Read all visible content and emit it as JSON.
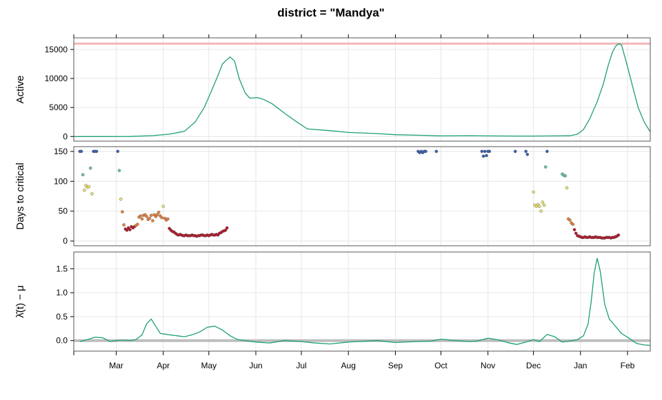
{
  "title": "district = \"Mandya\"",
  "colors": {
    "line": "#1b9e77",
    "reference_band": "#f4b6b6",
    "zero_line": "#bdbdbd",
    "grid": "#e6e6e6",
    "frame": "#555555",
    "low_days": "#b2182b",
    "mid_days": "#e08040",
    "high_mid_days": "#e8e070",
    "high_days": "#66c2a5",
    "max_days": "#3a5fae"
  },
  "chart_data": [
    {
      "type": "line",
      "ylabel": "Active",
      "ylim": [
        -800,
        17000
      ],
      "yticks": [
        0,
        5000,
        10000,
        15000
      ],
      "reference_line": 16000,
      "x_dates": [
        "2021-02-01",
        "2021-02-20",
        "2021-03-10",
        "2021-03-25",
        "2021-04-05",
        "2021-04-15",
        "2021-04-22",
        "2021-04-28",
        "2021-05-03",
        "2021-05-07",
        "2021-05-10",
        "2021-05-12",
        "2021-05-15",
        "2021-05-18",
        "2021-05-21",
        "2021-05-25",
        "2021-05-28",
        "2021-06-02",
        "2021-06-06",
        "2021-06-12",
        "2021-06-20",
        "2021-06-28",
        "2021-07-05",
        "2021-07-20",
        "2021-08-01",
        "2021-08-20",
        "2021-09-01",
        "2021-09-20",
        "2021-10-01",
        "2021-10-20",
        "2021-11-01",
        "2021-11-20",
        "2021-12-01",
        "2021-12-15",
        "2021-12-25",
        "2021-12-30",
        "2022-01-03",
        "2022-01-07",
        "2022-01-12",
        "2022-01-16",
        "2022-01-19",
        "2022-01-22",
        "2022-01-24",
        "2022-01-26",
        "2022-01-28",
        "2022-01-31",
        "2022-02-04",
        "2022-02-08",
        "2022-02-12",
        "2022-02-16"
      ],
      "values": [
        0,
        0,
        10,
        150,
        400,
        900,
        2500,
        5000,
        8000,
        10500,
        12500,
        13000,
        13700,
        13000,
        10000,
        7500,
        6600,
        6700,
        6400,
        5600,
        4000,
        2500,
        1300,
        1000,
        700,
        500,
        300,
        200,
        100,
        150,
        100,
        80,
        80,
        100,
        120,
        400,
        1200,
        3000,
        6000,
        9000,
        12000,
        14500,
        15500,
        16000,
        15800,
        13000,
        9000,
        5000,
        2500,
        800
      ]
    },
    {
      "type": "scatter",
      "ylabel": "Days to critical",
      "ylim": [
        -8,
        158
      ],
      "yticks": [
        0,
        50,
        100,
        150
      ],
      "color_scale": "days-to-critical",
      "x_dates": [
        "2021-02-05",
        "2021-02-06",
        "2021-02-07",
        "2021-02-08",
        "2021-02-09",
        "2021-02-10",
        "2021-02-11",
        "2021-02-12",
        "2021-02-13",
        "2021-02-14",
        "2021-02-15",
        "2021-02-16",
        "2021-03-02",
        "2021-03-03",
        "2021-03-04",
        "2021-03-05",
        "2021-03-06",
        "2021-03-07",
        "2021-03-08",
        "2021-03-09",
        "2021-03-10",
        "2021-03-11",
        "2021-03-12",
        "2021-03-13",
        "2021-03-14",
        "2021-03-15",
        "2021-03-16",
        "2021-03-17",
        "2021-03-18",
        "2021-03-19",
        "2021-03-20",
        "2021-03-21",
        "2021-03-22",
        "2021-03-23",
        "2021-03-24",
        "2021-03-25",
        "2021-03-26",
        "2021-03-27",
        "2021-03-28",
        "2021-03-29",
        "2021-03-30",
        "2021-03-31",
        "2021-04-01",
        "2021-04-02",
        "2021-04-03",
        "2021-04-04",
        "2021-04-05",
        "2021-04-06",
        "2021-04-07",
        "2021-04-08",
        "2021-04-09",
        "2021-04-10",
        "2021-04-11",
        "2021-04-12",
        "2021-04-13",
        "2021-04-14",
        "2021-04-15",
        "2021-04-16",
        "2021-04-17",
        "2021-04-18",
        "2021-04-19",
        "2021-04-20",
        "2021-04-21",
        "2021-04-22",
        "2021-04-23",
        "2021-04-24",
        "2021-04-25",
        "2021-04-26",
        "2021-04-27",
        "2021-04-28",
        "2021-04-29",
        "2021-04-30",
        "2021-05-01",
        "2021-05-02",
        "2021-05-03",
        "2021-05-04",
        "2021-05-05",
        "2021-05-06",
        "2021-05-07",
        "2021-05-08",
        "2021-05-09",
        "2021-05-10",
        "2021-05-11",
        "2021-05-12",
        "2021-05-13",
        "2021-09-16",
        "2021-09-17",
        "2021-09-18",
        "2021-09-19",
        "2021-09-20",
        "2021-09-21",
        "2021-09-28",
        "2021-10-28",
        "2021-10-29",
        "2021-10-30",
        "2021-10-31",
        "2021-11-01",
        "2021-11-02",
        "2021-11-19",
        "2021-11-26",
        "2021-11-27",
        "2021-12-01",
        "2021-12-02",
        "2021-12-03",
        "2021-12-04",
        "2021-12-05",
        "2021-12-06",
        "2021-12-07",
        "2021-12-08",
        "2021-12-09",
        "2021-12-10",
        "2021-12-20",
        "2021-12-21",
        "2021-12-22",
        "2021-12-23",
        "2021-12-24",
        "2021-12-25",
        "2021-12-26",
        "2021-12-27",
        "2021-12-28",
        "2021-12-29",
        "2021-12-30",
        "2021-12-31",
        "2022-01-01",
        "2022-01-02",
        "2022-01-03",
        "2022-01-04",
        "2022-01-05",
        "2022-01-06",
        "2022-01-07",
        "2022-01-08",
        "2022-01-09",
        "2022-01-10",
        "2022-01-11",
        "2022-01-12",
        "2022-01-13",
        "2022-01-14",
        "2022-01-15",
        "2022-01-16",
        "2022-01-17",
        "2022-01-18",
        "2022-01-19",
        "2022-01-20",
        "2022-01-21",
        "2022-01-22",
        "2022-01-23",
        "2022-01-24",
        "2022-01-25",
        "2022-01-26"
      ],
      "values": [
        150,
        150,
        111,
        85,
        93,
        90,
        91,
        122,
        79,
        150,
        150,
        150,
        150,
        118,
        70,
        49,
        27,
        20,
        18,
        22,
        19,
        24,
        22,
        24,
        26,
        28,
        40,
        42,
        37,
        43,
        44,
        41,
        36,
        38,
        43,
        34,
        44,
        41,
        44,
        48,
        42,
        39,
        58,
        38,
        35,
        37,
        21,
        18,
        16,
        15,
        13,
        11,
        10,
        11,
        10,
        9,
        9,
        10,
        9,
        9,
        9,
        10,
        9,
        9,
        8,
        9,
        9,
        10,
        10,
        9,
        9,
        10,
        9,
        10,
        11,
        10,
        10,
        11,
        10,
        13,
        14,
        16,
        17,
        18,
        22,
        150,
        148,
        150,
        148,
        150,
        150,
        150,
        150,
        142,
        150,
        143,
        150,
        150,
        150,
        150,
        145,
        82,
        60,
        58,
        61,
        58,
        50,
        65,
        60,
        124,
        150,
        112,
        110,
        109,
        89,
        37,
        35,
        30,
        28,
        19,
        13,
        9,
        8,
        7,
        6,
        6,
        7,
        6,
        6,
        7,
        6,
        6,
        6,
        7,
        6,
        6,
        6,
        5,
        5,
        5,
        6,
        6,
        6,
        5,
        6,
        6,
        7,
        8,
        10
      ],
      "point_colors": [
        5,
        5,
        4,
        3,
        3,
        3,
        3,
        4,
        3,
        5,
        5,
        5,
        5,
        4,
        3,
        2,
        2,
        1,
        1,
        1,
        1,
        1,
        1,
        1,
        2,
        2,
        2,
        2,
        2,
        2,
        2,
        2,
        2,
        2,
        2,
        2,
        2,
        2,
        2,
        2,
        2,
        2,
        3,
        2,
        2,
        2,
        1,
        1,
        1,
        1,
        1,
        1,
        1,
        1,
        1,
        1,
        1,
        1,
        1,
        1,
        1,
        1,
        1,
        1,
        1,
        1,
        1,
        1,
        1,
        1,
        1,
        1,
        1,
        1,
        1,
        1,
        1,
        1,
        1,
        1,
        1,
        1,
        1,
        1,
        1,
        5,
        5,
        5,
        5,
        5,
        5,
        5,
        5,
        5,
        5,
        5,
        5,
        5,
        5,
        5,
        5,
        3,
        3,
        3,
        3,
        3,
        3,
        3,
        3,
        4,
        5,
        4,
        4,
        4,
        3,
        2,
        2,
        2,
        2,
        1,
        1,
        1,
        1,
        1,
        1,
        1,
        1,
        1,
        1,
        1,
        1,
        1,
        1,
        1,
        1,
        1,
        1,
        1,
        1,
        1,
        1,
        1,
        1,
        1,
        1,
        1,
        1,
        1,
        1
      ]
    },
    {
      "type": "line",
      "ylabel": "λ̂(t) − μ",
      "ylim": [
        -0.22,
        1.85
      ],
      "yticks": [
        0.0,
        0.5,
        1.0,
        1.5
      ],
      "ytick_labels": [
        "0.0",
        "0.5",
        "1.0",
        "1.5"
      ],
      "zero_line": 0,
      "x_dates": [
        "2021-02-05",
        "2021-02-10",
        "2021-02-15",
        "2021-02-20",
        "2021-02-25",
        "2021-03-01",
        "2021-03-05",
        "2021-03-10",
        "2021-03-14",
        "2021-03-18",
        "2021-03-21",
        "2021-03-24",
        "2021-03-27",
        "2021-03-30",
        "2021-04-05",
        "2021-04-10",
        "2021-04-15",
        "2021-04-20",
        "2021-04-25",
        "2021-04-30",
        "2021-05-05",
        "2021-05-10",
        "2021-05-15",
        "2021-05-20",
        "2021-06-01",
        "2021-06-10",
        "2021-06-20",
        "2021-07-01",
        "2021-07-10",
        "2021-07-20",
        "2021-08-01",
        "2021-08-20",
        "2021-09-01",
        "2021-09-15",
        "2021-09-25",
        "2021-10-01",
        "2021-10-10",
        "2021-10-20",
        "2021-10-25",
        "2021-11-01",
        "2021-11-05",
        "2021-11-10",
        "2021-11-15",
        "2021-11-20",
        "2021-11-25",
        "2021-12-01",
        "2021-12-05",
        "2021-12-10",
        "2021-12-15",
        "2021-12-20",
        "2021-12-25",
        "2021-12-30",
        "2022-01-03",
        "2022-01-06",
        "2022-01-08",
        "2022-01-10",
        "2022-01-12",
        "2022-01-14",
        "2022-01-17",
        "2022-01-20",
        "2022-01-24",
        "2022-01-28",
        "2022-02-02",
        "2022-02-07",
        "2022-02-12",
        "2022-02-16"
      ],
      "values": [
        -0.02,
        0.02,
        0.07,
        0.06,
        -0.02,
        0.0,
        0.01,
        0.0,
        0.02,
        0.12,
        0.35,
        0.45,
        0.3,
        0.15,
        0.12,
        0.1,
        0.08,
        0.12,
        0.18,
        0.28,
        0.3,
        0.22,
        0.1,
        0.02,
        -0.03,
        -0.05,
        0.0,
        -0.02,
        -0.05,
        -0.07,
        -0.03,
        0.0,
        -0.04,
        -0.02,
        -0.01,
        0.03,
        0.0,
        -0.02,
        -0.01,
        0.05,
        0.03,
        0.0,
        -0.05,
        -0.08,
        -0.04,
        0.02,
        -0.02,
        0.13,
        0.08,
        -0.03,
        -0.01,
        0.02,
        0.1,
        0.35,
        0.8,
        1.4,
        1.72,
        1.45,
        0.75,
        0.45,
        0.3,
        0.15,
        0.05,
        -0.06,
        -0.09,
        -0.1
      ]
    }
  ],
  "x_axis": {
    "range": [
      "2021-02-01",
      "2022-02-16"
    ],
    "ticks": [
      {
        "date": "2021-03-01",
        "label": "Mar"
      },
      {
        "date": "2021-04-01",
        "label": "Apr"
      },
      {
        "date": "2021-05-01",
        "label": "May"
      },
      {
        "date": "2021-06-01",
        "label": "Jun"
      },
      {
        "date": "2021-07-01",
        "label": "Jul"
      },
      {
        "date": "2021-08-01",
        "label": "Aug"
      },
      {
        "date": "2021-09-01",
        "label": "Sep"
      },
      {
        "date": "2021-10-01",
        "label": "Oct"
      },
      {
        "date": "2021-11-01",
        "label": "Nov"
      },
      {
        "date": "2021-12-01",
        "label": "Dec"
      },
      {
        "date": "2022-01-01",
        "label": "Jan"
      },
      {
        "date": "2022-02-01",
        "label": "Feb"
      }
    ]
  }
}
